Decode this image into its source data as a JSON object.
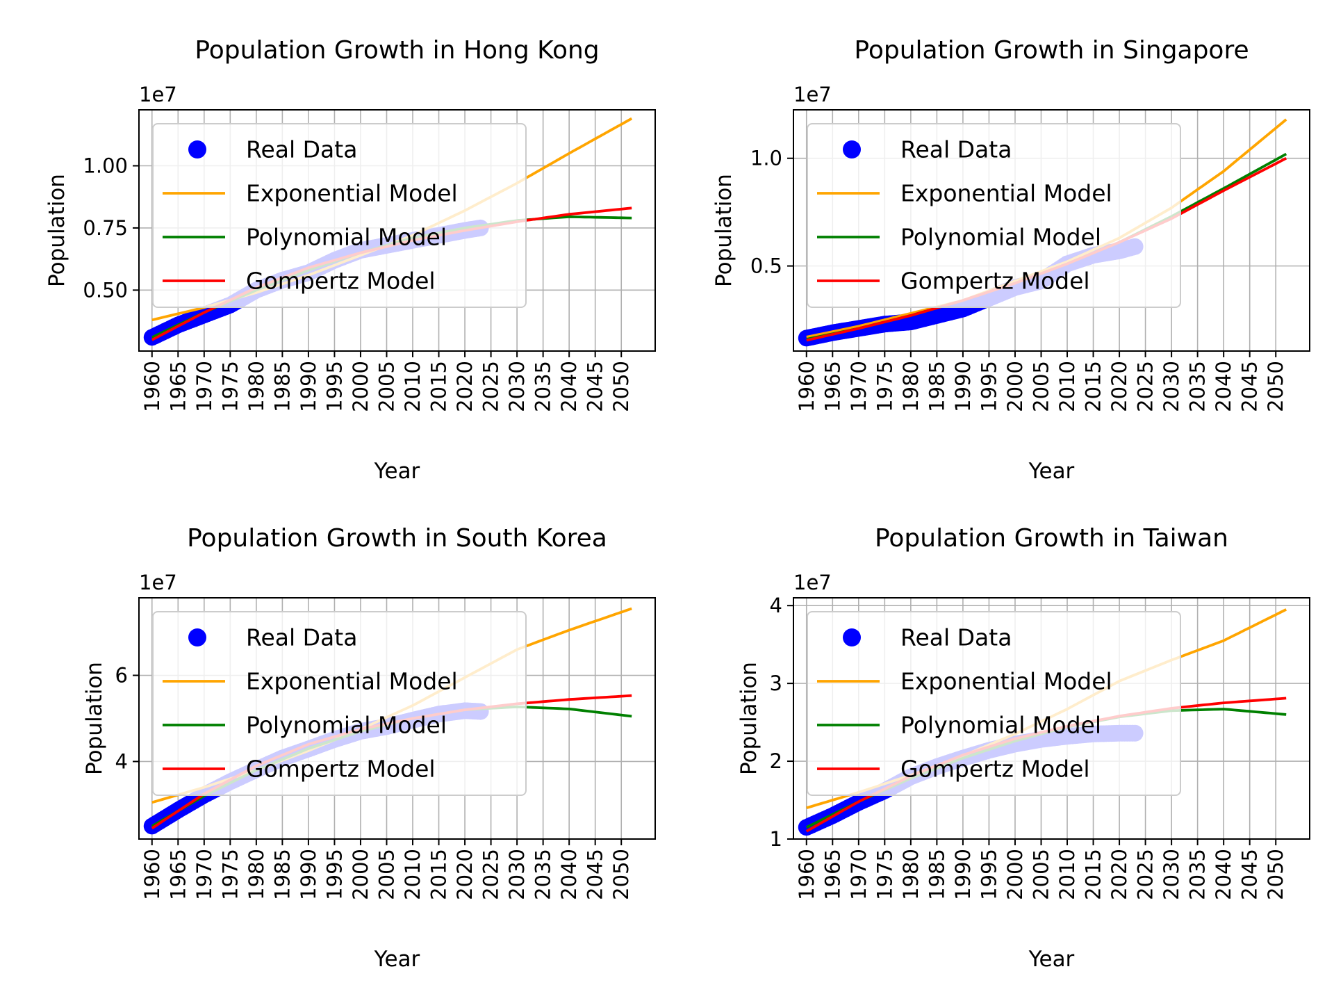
{
  "chart_data": [
    {
      "type": "scatter",
      "title": "Population Growth in Hong Kong",
      "xlabel": "Year",
      "ylabel": "Population",
      "offset_text": "1e7",
      "x_ticks": [
        1960,
        1965,
        1970,
        1975,
        1980,
        1985,
        1990,
        1995,
        2000,
        2005,
        2010,
        2015,
        2020,
        2025,
        2030,
        2035,
        2040,
        2045,
        2050
      ],
      "y_ticks": [
        0.5,
        0.75,
        1.0
      ],
      "y_tick_labels": [
        "0.50",
        "0.75",
        "1.00"
      ],
      "xlim": [
        1957.5,
        2056.5
      ],
      "ylim": [
        0.255,
        1.225
      ],
      "grid": true,
      "legend_position": "upper-left",
      "real_data": {
        "x": [
          1960,
          1965,
          1970,
          1975,
          1980,
          1985,
          1990,
          1995,
          2000,
          2005,
          2010,
          2015,
          2020,
          2023
        ],
        "y": [
          0.31,
          0.36,
          0.4,
          0.44,
          0.5,
          0.54,
          0.57,
          0.62,
          0.66,
          0.68,
          0.7,
          0.72,
          0.74,
          0.75
        ]
      },
      "series": [
        {
          "name": "Real Data",
          "color": "#0000ff",
          "kind": "scatter"
        },
        {
          "name": "Exponential Model",
          "color": "#ffa500",
          "x": [
            1960,
            1970,
            1980,
            1990,
            2000,
            2010,
            2020,
            2030,
            2040,
            2052
          ],
          "y": [
            0.38,
            0.43,
            0.49,
            0.56,
            0.64,
            0.72,
            0.82,
            0.93,
            1.05,
            1.19
          ]
        },
        {
          "name": "Polynomial Model",
          "color": "#008000",
          "x": [
            1960,
            1970,
            1980,
            1990,
            2000,
            2010,
            2020,
            2030,
            2040,
            2052
          ],
          "y": [
            0.31,
            0.41,
            0.5,
            0.58,
            0.65,
            0.71,
            0.75,
            0.78,
            0.795,
            0.79
          ]
        },
        {
          "name": "Gompertz Model",
          "color": "#ff0000",
          "x": [
            1960,
            1970,
            1980,
            1990,
            2000,
            2010,
            2020,
            2030,
            2040,
            2052
          ],
          "y": [
            0.3,
            0.41,
            0.51,
            0.59,
            0.65,
            0.7,
            0.74,
            0.775,
            0.805,
            0.83
          ]
        }
      ]
    },
    {
      "type": "scatter",
      "title": "Population Growth in Singapore",
      "xlabel": "Year",
      "ylabel": "Population",
      "offset_text": "1e7",
      "x_ticks": [
        1960,
        1965,
        1970,
        1975,
        1980,
        1985,
        1990,
        1995,
        2000,
        2005,
        2010,
        2015,
        2020,
        2025,
        2030,
        2035,
        2040,
        2045,
        2050
      ],
      "y_ticks": [
        0.5,
        1.0
      ],
      "y_tick_labels": [
        "0.5",
        "1.0"
      ],
      "xlim": [
        1957.5,
        2056.5
      ],
      "ylim": [
        0.105,
        1.225
      ],
      "grid": true,
      "legend_position": "upper-left",
      "real_data": {
        "x": [
          1960,
          1965,
          1970,
          1975,
          1980,
          1985,
          1990,
          1995,
          2000,
          2005,
          2010,
          2015,
          2020,
          2023
        ],
        "y": [
          0.165,
          0.19,
          0.21,
          0.23,
          0.24,
          0.27,
          0.3,
          0.35,
          0.4,
          0.43,
          0.51,
          0.55,
          0.57,
          0.59
        ]
      },
      "series": [
        {
          "name": "Real Data",
          "color": "#0000ff",
          "kind": "scatter"
        },
        {
          "name": "Exponential Model",
          "color": "#ffa500",
          "x": [
            1960,
            1970,
            1980,
            1990,
            2000,
            2010,
            2020,
            2030,
            2040,
            2052
          ],
          "y": [
            0.17,
            0.22,
            0.28,
            0.34,
            0.43,
            0.52,
            0.63,
            0.77,
            0.94,
            1.18
          ]
        },
        {
          "name": "Polynomial Model",
          "color": "#008000",
          "x": [
            1960,
            1970,
            1980,
            1990,
            2000,
            2010,
            2020,
            2030,
            2040,
            2052
          ],
          "y": [
            0.16,
            0.21,
            0.27,
            0.34,
            0.42,
            0.51,
            0.61,
            0.73,
            0.86,
            1.02
          ]
        },
        {
          "name": "Gompertz Model",
          "color": "#ff0000",
          "x": [
            1960,
            1970,
            1980,
            1990,
            2000,
            2010,
            2020,
            2030,
            2040,
            2052
          ],
          "y": [
            0.155,
            0.21,
            0.27,
            0.34,
            0.42,
            0.51,
            0.61,
            0.72,
            0.85,
            1.0
          ]
        }
      ]
    },
    {
      "type": "scatter",
      "title": "Population Growth in South Korea",
      "xlabel": "Year",
      "ylabel": "Population",
      "offset_text": "1e7",
      "x_ticks": [
        1960,
        1965,
        1970,
        1975,
        1980,
        1985,
        1990,
        1995,
        2000,
        2005,
        2010,
        2015,
        2020,
        2025,
        2030,
        2035,
        2040,
        2045,
        2050
      ],
      "y_ticks": [
        4,
        6
      ],
      "y_tick_labels": [
        "4",
        "6"
      ],
      "xlim": [
        1957.5,
        2056.5
      ],
      "ylim": [
        2.2,
        7.8
      ],
      "grid": true,
      "legend_position": "upper-left",
      "real_data": {
        "x": [
          1960,
          1965,
          1970,
          1975,
          1980,
          1985,
          1990,
          1995,
          2000,
          2005,
          2010,
          2015,
          2020,
          2023
        ],
        "y": [
          2.5,
          2.87,
          3.22,
          3.53,
          3.81,
          4.08,
          4.29,
          4.51,
          4.7,
          4.81,
          4.96,
          5.1,
          5.18,
          5.16
        ]
      },
      "series": [
        {
          "name": "Real Data",
          "color": "#0000ff",
          "kind": "scatter"
        },
        {
          "name": "Exponential Model",
          "color": "#ffa500",
          "x": [
            1960,
            1970,
            1980,
            1990,
            2000,
            2010,
            2020,
            2030,
            2040,
            2052
          ],
          "y": [
            3.05,
            3.4,
            3.8,
            4.25,
            4.75,
            5.3,
            5.95,
            6.6,
            7.05,
            7.55
          ]
        },
        {
          "name": "Polynomial Model",
          "color": "#008000",
          "x": [
            1960,
            1970,
            1980,
            1990,
            2000,
            2010,
            2020,
            2030,
            2040,
            2052
          ],
          "y": [
            2.5,
            3.2,
            3.8,
            4.3,
            4.7,
            5.0,
            5.2,
            5.27,
            5.22,
            5.05
          ]
        },
        {
          "name": "Gompertz Model",
          "color": "#ff0000",
          "x": [
            1960,
            1970,
            1980,
            1990,
            2000,
            2010,
            2020,
            2030,
            2040,
            2052
          ],
          "y": [
            2.45,
            3.25,
            3.9,
            4.4,
            4.75,
            5.0,
            5.2,
            5.34,
            5.44,
            5.53
          ]
        }
      ]
    },
    {
      "type": "scatter",
      "title": "Population Growth in Taiwan",
      "xlabel": "Year",
      "ylabel": "Population",
      "offset_text": "1e7",
      "x_ticks": [
        1960,
        1965,
        1970,
        1975,
        1980,
        1985,
        1990,
        1995,
        2000,
        2005,
        2010,
        2015,
        2020,
        2025,
        2030,
        2035,
        2040,
        2045,
        2050
      ],
      "y_ticks": [
        1,
        2,
        3,
        4
      ],
      "y_tick_labels": [
        "1",
        "2",
        "3",
        "4"
      ],
      "xlim": [
        1957.5,
        2056.5
      ],
      "ylim": [
        1.0,
        4.1
      ],
      "grid": true,
      "legend_position": "upper-left",
      "real_data": {
        "x": [
          1960,
          1965,
          1970,
          1975,
          1980,
          1985,
          1990,
          1995,
          2000,
          2005,
          2010,
          2015,
          2020,
          2023
        ],
        "y": [
          1.15,
          1.3,
          1.47,
          1.62,
          1.8,
          1.93,
          2.04,
          2.14,
          2.22,
          2.28,
          2.32,
          2.35,
          2.36,
          2.36
        ]
      },
      "series": [
        {
          "name": "Real Data",
          "color": "#0000ff",
          "kind": "scatter"
        },
        {
          "name": "Exponential Model",
          "color": "#ffa500",
          "x": [
            1960,
            1970,
            1980,
            1990,
            2000,
            2010,
            2020,
            2030,
            2040,
            2052
          ],
          "y": [
            1.4,
            1.6,
            1.82,
            2.07,
            2.35,
            2.67,
            3.03,
            3.3,
            3.55,
            3.95
          ]
        },
        {
          "name": "Polynomial Model",
          "color": "#008000",
          "x": [
            1960,
            1970,
            1980,
            1990,
            2000,
            2010,
            2020,
            2030,
            2040,
            2052
          ],
          "y": [
            1.15,
            1.48,
            1.78,
            2.04,
            2.26,
            2.44,
            2.57,
            2.65,
            2.67,
            2.6
          ]
        },
        {
          "name": "Gompertz Model",
          "color": "#ff0000",
          "x": [
            1960,
            1970,
            1980,
            1990,
            2000,
            2010,
            2020,
            2030,
            2040,
            2052
          ],
          "y": [
            1.1,
            1.48,
            1.81,
            2.08,
            2.29,
            2.45,
            2.58,
            2.68,
            2.75,
            2.81
          ]
        }
      ]
    }
  ]
}
